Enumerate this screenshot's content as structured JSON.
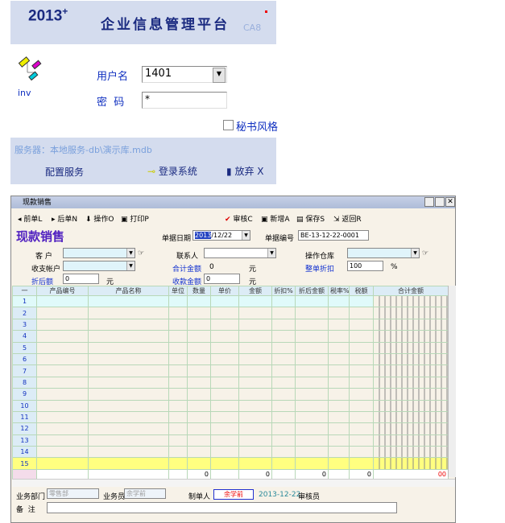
{
  "login": {
    "year": "2013",
    "year_sup": "+",
    "title": "企业信息管理平台",
    "edition": "CA8",
    "app_icon_label": "inv",
    "username_label": "用户名",
    "username_value": "1401",
    "password_label": "密  码",
    "password_value": "*",
    "secretary_style_label": "秘书风格",
    "secretary_style_checked": false,
    "server_text": "服务器：本地服务-db\\演示库.mdb",
    "config_label": "配置服务",
    "login_label": "登录系统",
    "cancel_label": "放弃 X"
  },
  "window": {
    "title": "现款销售",
    "toolbar": {
      "prev": "前单L",
      "next": "后单N",
      "operate": "操作O",
      "print": "打印P",
      "audit": "审核C",
      "add": "新增A",
      "save": "保存S",
      "back": "返回R"
    },
    "heading": "现款销售",
    "form": {
      "date_label": "单据日期",
      "date_value_sel": "2013",
      "date_value_rest": "/12/22",
      "no_label": "单据编号",
      "no_value": "BE-13-12-22-0001",
      "customer_label": "客 户",
      "customer_value": "",
      "contact_label": "联系人",
      "contact_value": "",
      "warehouse_label": "操作仓库",
      "warehouse_value": "",
      "account_label": "收支帐户",
      "account_value": "",
      "total_label": "合计金额",
      "total_value": "0",
      "unit": "元",
      "discount_label": "整单折扣",
      "discount_value": "100",
      "percent": "%",
      "after_label": "折后额",
      "after_value": "0",
      "received_label": "收款金额",
      "received_value": "0"
    },
    "grid": {
      "columns": [
        "一",
        "产品编号",
        "产品名称",
        "单位",
        "数量",
        "单价",
        "金额",
        "折扣%",
        "折后金额",
        "税率%",
        "税额",
        "合计金额"
      ],
      "rows": [
        "1",
        "2",
        "3",
        "4",
        "5",
        "6",
        "7",
        "8",
        "9",
        "10",
        "11",
        "12",
        "13",
        "14",
        "15"
      ],
      "totals": {
        "qty": "0",
        "amount": "0",
        "after": "0",
        "tax": "0",
        "total": "00"
      }
    },
    "footer": {
      "dept_label": "业务部门",
      "dept_value": "零售部",
      "staff_label": "业务员",
      "staff_value": "余学前",
      "maker_label": "制单人",
      "maker_value": "余学前",
      "date": "2013-12-22",
      "auditor_label": "审核员",
      "remark_label": "备  注"
    }
  }
}
